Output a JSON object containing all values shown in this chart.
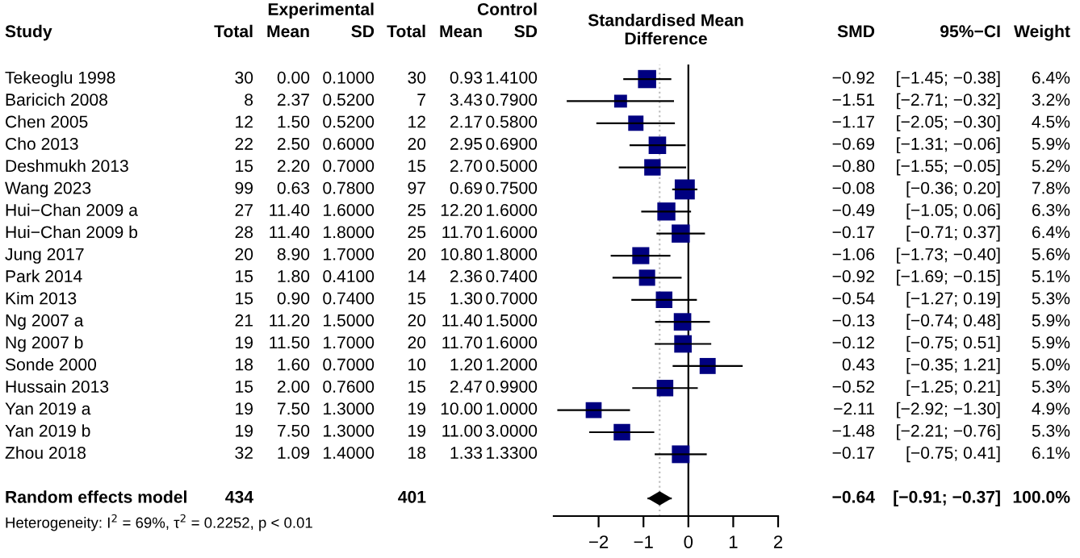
{
  "chart_data": [
    {
      "type": "other",
      "categories": [
        "Tekeoglu 1998",
        "Baricich 2008",
        "Chen 2005",
        "Cho 2013",
        "Deshmukh 2013",
        "Wang 2023",
        "Hui−Chan 2009 a",
        "Hui−Chan 2009 b",
        "Jung 2017",
        "Park 2014",
        "Kim 2013",
        "Ng 2007 a",
        "Ng 2007 b",
        "Sonde 2000",
        "Hussain 2013",
        "Yan 2019 a",
        "Yan 2019 b",
        "Zhou 2018",
        null,
        "Random effects model"
      ],
      "annotations": [
        "Study",
        "Experimental",
        "Control",
        "Heterogeneity: I$^{2}$ = 69%, τ$^{2}$ = 0.2252, p < 0.01"
      ],
      "series": [
        {
          "name": "Total",
          "values": [
            30,
            8,
            12,
            22,
            15,
            99,
            27,
            28,
            20,
            15,
            15,
            21,
            19,
            18,
            15,
            19,
            19,
            32,
            null,
            434
          ],
          "value_labels": [
            "30",
            "8",
            "12",
            "22",
            "15",
            "99",
            "27",
            "28",
            "20",
            "15",
            "15",
            "21",
            "19",
            "18",
            "15",
            "19",
            "19",
            "32",
            null,
            "434"
          ]
        },
        {
          "name": "Mean",
          "values": [
            0.0,
            2.37,
            1.5,
            2.5,
            2.2,
            0.63,
            11.4,
            11.4,
            8.9,
            1.8,
            0.9,
            11.2,
            11.5,
            1.6,
            2.0,
            7.5,
            7.5,
            1.09,
            null,
            null
          ],
          "value_labels": [
            "0.00",
            "2.37",
            "1.50",
            "2.50",
            "2.20",
            "0.63",
            "11.40",
            "11.40",
            "8.90",
            "1.80",
            "0.90",
            "11.20",
            "11.50",
            "1.60",
            "2.00",
            "7.50",
            "7.50",
            "1.09",
            null,
            null
          ]
        },
        {
          "name": "SD",
          "values": [
            0.1,
            0.52,
            0.52,
            0.6,
            0.7,
            0.78,
            1.6,
            1.8,
            1.7,
            0.41,
            0.74,
            1.5,
            1.7,
            0.7,
            0.76,
            1.3,
            1.3,
            1.4,
            null,
            null
          ],
          "value_labels": [
            "0.1000",
            "0.5200",
            "0.5200",
            "0.6000",
            "0.7000",
            "0.7800",
            "1.6000",
            "1.8000",
            "1.7000",
            "0.4100",
            "0.7400",
            "1.5000",
            "1.7000",
            "0.7000",
            "0.7600",
            "1.3000",
            "1.3000",
            "1.4000",
            null,
            null
          ]
        },
        {
          "name": "Total",
          "values": [
            30,
            7,
            12,
            20,
            15,
            97,
            25,
            25,
            20,
            14,
            15,
            20,
            20,
            10,
            15,
            19,
            19,
            18,
            null,
            401
          ],
          "value_labels": [
            "30",
            "7",
            "12",
            "20",
            "15",
            "97",
            "25",
            "25",
            "20",
            "14",
            "15",
            "20",
            "20",
            "10",
            "15",
            "19",
            "19",
            "18",
            null,
            "401"
          ]
        },
        {
          "name": "Mean",
          "values": [
            0.93,
            3.43,
            2.17,
            2.95,
            2.7,
            0.69,
            12.2,
            11.7,
            10.8,
            2.36,
            1.3,
            11.4,
            11.7,
            1.2,
            2.47,
            10.0,
            11.0,
            1.33,
            null,
            null
          ],
          "value_labels": [
            "0.93",
            "3.43",
            "2.17",
            "2.95",
            "2.70",
            "0.69",
            "12.20",
            "11.70",
            "10.80",
            "2.36",
            "1.30",
            "11.40",
            "11.70",
            "1.20",
            "2.47",
            "10.00",
            "11.00",
            "1.33",
            null,
            null
          ]
        },
        {
          "name": "SD",
          "values": [
            1.41,
            0.79,
            0.58,
            0.69,
            0.5,
            0.75,
            1.6,
            1.6,
            1.8,
            0.74,
            0.7,
            1.5,
            1.6,
            1.2,
            0.99,
            1.0,
            3.0,
            1.33,
            null,
            null
          ],
          "value_labels": [
            "1.4100",
            "0.7900",
            "0.5800",
            "0.6900",
            "0.5000",
            "0.7500",
            "1.6000",
            "1.6000",
            "1.8000",
            "0.7400",
            "0.7000",
            "1.5000",
            "1.6000",
            "1.2000",
            "0.9900",
            "1.0000",
            "3.0000",
            "1.3300",
            null,
            null
          ]
        },
        {
          "name": "SMD",
          "values": [
            -0.92,
            -1.51,
            -1.17,
            -0.69,
            -0.8,
            -0.08,
            -0.49,
            -0.17,
            -1.06,
            -0.92,
            -0.54,
            -0.13,
            -0.12,
            0.43,
            -0.52,
            -2.11,
            -1.48,
            -0.17,
            null,
            -0.64
          ],
          "value_labels": [
            "−0.92",
            "−1.51",
            "−1.17",
            "−0.69",
            "−0.80",
            "−0.08",
            "−0.49",
            "−0.17",
            "−1.06",
            "−0.92",
            "−0.54",
            "−0.13",
            "−0.12",
            "0.43",
            "−0.52",
            "−2.11",
            "−1.48",
            "−0.17",
            null,
            "−0.64"
          ]
        },
        {
          "name": "95%−CI",
          "values": [
            -1.45,
            -2.71,
            -2.05,
            -1.31,
            -1.55,
            -0.36,
            -1.05,
            -0.71,
            -1.73,
            -1.69,
            -1.27,
            -0.74,
            -0.75,
            -0.35,
            -1.25,
            -2.92,
            -2.21,
            -0.75,
            null,
            -0.91
          ],
          "value_labels": [
            "[−1.45; −0.38]",
            "[−2.71; −0.32]",
            "[−2.05; −0.30]",
            "[−1.31; −0.06]",
            "[−1.55; −0.05]",
            "[−0.36; 0.20]",
            "[−1.05; 0.06]",
            "[−0.71; 0.37]",
            "[−1.73; −0.40]",
            "[−1.69; −0.15]",
            "[−1.27; 0.19]",
            "[−0.74; 0.48]",
            "[−0.75; 0.51]",
            "[−0.35; 1.21]",
            "[−1.25; 0.21]",
            "[−2.92; −1.30]",
            "[−2.21; −0.76]",
            "[−0.75; 0.41]",
            null,
            "[−0.91; −0.37]"
          ]
        },
        {
          "name": "Weight",
          "values": [
            6.4,
            3.2,
            4.5,
            5.9,
            5.2,
            7.8,
            6.3,
            6.4,
            5.6,
            5.1,
            5.3,
            5.9,
            5.9,
            5.0,
            5.3,
            4.9,
            5.3,
            6.1,
            null,
            100.0
          ],
          "value_labels": [
            "6.4%",
            "3.2%",
            "4.5%",
            "5.9%",
            "5.2%",
            "7.8%",
            "6.3%",
            "6.4%",
            "5.6%",
            "5.1%",
            "5.3%",
            "5.9%",
            "5.9%",
            "5.0%",
            "5.3%",
            "4.9%",
            "5.3%",
            "6.1%",
            null,
            "100.0%"
          ]
        }
      ]
    },
    {
      "type": "bubble",
      "title": "Standardised Mean\nDifference",
      "orientation": "horizontal",
      "categories": [
        null,
        null,
        null,
        null,
        null,
        null,
        null,
        null,
        null,
        null,
        null,
        null,
        null,
        null,
        null,
        null,
        null,
        null,
        null,
        null
      ],
      "xlim": [
        -3,
        2
      ],
      "xticks": [
        {
          "value": -2,
          "label": "−2"
        },
        {
          "value": -1,
          "label": "−1"
        },
        0,
        1,
        2
      ],
      "ref_lines": [
        {
          "axis": "x",
          "value": 0,
          "color": "#000000",
          "line_style": "solid"
        },
        {
          "axis": "x",
          "value": -0.64,
          "color": "#bfbfbf",
          "line_style": "dotted"
        }
      ],
      "series": [
        {
          "color": "#000080",
          "marker": "square",
          "values": [
            -0.92,
            -1.51,
            -1.17,
            -0.69,
            -0.8,
            -0.08,
            -0.49,
            -0.17,
            -1.06,
            -0.92,
            -0.54,
            -0.13,
            -0.12,
            0.43,
            -0.52,
            -2.11,
            -1.48,
            -0.17,
            null,
            null
          ],
          "errors": [
            [
              -1.45,
              -0.38
            ],
            [
              -2.71,
              -0.32
            ],
            [
              -2.05,
              -0.3
            ],
            [
              -1.31,
              -0.06
            ],
            [
              -1.55,
              -0.05
            ],
            [
              -0.36,
              0.2
            ],
            [
              -1.05,
              0.06
            ],
            [
              -0.71,
              0.37
            ],
            [
              -1.73,
              -0.4
            ],
            [
              -1.69,
              -0.15
            ],
            [
              -1.27,
              0.19
            ],
            [
              -0.74,
              0.48
            ],
            [
              -0.75,
              0.51
            ],
            [
              -0.35,
              1.21
            ],
            [
              -1.25,
              0.21
            ],
            [
              -2.92,
              -1.3
            ],
            [
              -2.21,
              -0.76
            ],
            [
              -0.75,
              0.41
            ],
            null,
            null
          ],
          "sizes": [
            0.82,
            0.41,
            0.58,
            0.76,
            0.67,
            1,
            0.81,
            0.82,
            0.72,
            0.65,
            0.68,
            0.76,
            0.76,
            0.64,
            0.68,
            0.63,
            0.68,
            0.78,
            null,
            null
          ]
        },
        {
          "type": "scatter",
          "color": "#000000",
          "marker": "diamond",
          "values": [
            null,
            null,
            null,
            null,
            null,
            null,
            null,
            null,
            null,
            null,
            null,
            null,
            null,
            null,
            null,
            null,
            null,
            null,
            null,
            -0.64
          ],
          "errors": [
            null,
            null,
            null,
            null,
            null,
            null,
            null,
            null,
            null,
            null,
            null,
            null,
            null,
            null,
            null,
            null,
            null,
            null,
            null,
            [
              -0.91,
              -0.37
            ]
          ]
        }
      ]
    }
  ]
}
